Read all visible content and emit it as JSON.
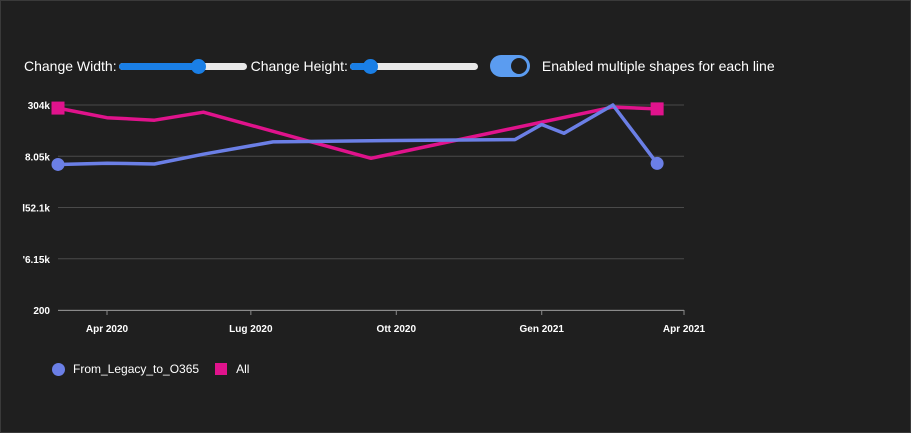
{
  "controls": {
    "width_label": "Change Width:",
    "width_value": 0.62,
    "height_label": "Change Height:",
    "height_value": 0.16,
    "toggle_label": "Enabled multiple shapes for each line",
    "toggle_on": true
  },
  "chart_data": {
    "type": "line",
    "title": "",
    "xlabel": "",
    "ylabel": "",
    "y_tick_labels": [
      "200",
      "'6.15k",
      "l52.1k",
      "8.05k",
      "304k"
    ],
    "x_tick_labels": [
      "Apr 2020",
      "Lug 2020",
      "Ott 2020",
      "Gen 2021",
      "Apr 2021"
    ],
    "x_range": [
      "2020-03-01",
      "2021-04-01"
    ],
    "grid": "horizontal",
    "legend_position": "bottom-left",
    "series": [
      {
        "name": "From_Legacy_to_O365",
        "color": "#6b7fe6",
        "marker": "circle",
        "points": [
          [
            "2020-03-01",
            0.71
          ],
          [
            "2020-04-01",
            0.716
          ],
          [
            "2020-05-01",
            0.712
          ],
          [
            "2020-06-01",
            0.76
          ],
          [
            "2020-07-15",
            0.82
          ],
          [
            "2020-10-01",
            0.827
          ],
          [
            "2020-12-15",
            0.831
          ],
          [
            "2021-01-01",
            0.905
          ],
          [
            "2021-01-15",
            0.862
          ],
          [
            "2021-02-15",
            1.0
          ],
          [
            "2021-03-15",
            0.715
          ]
        ]
      },
      {
        "name": "All",
        "color": "#e0138c",
        "marker": "square",
        "points": [
          [
            "2020-03-01",
            0.985
          ],
          [
            "2020-04-01",
            0.938
          ],
          [
            "2020-05-01",
            0.926
          ],
          [
            "2020-06-01",
            0.965
          ],
          [
            "2020-09-15",
            0.74
          ],
          [
            "2021-02-15",
            0.99
          ],
          [
            "2021-03-15",
            0.981
          ]
        ]
      }
    ]
  }
}
